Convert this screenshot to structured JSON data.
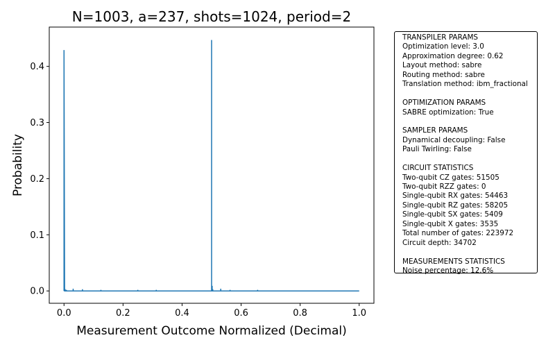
{
  "chart_data": {
    "type": "line",
    "title": "N=1003, a=237, shots=1024, period=2",
    "xlabel": "Measurement Outcome Normalized (Decimal)",
    "ylabel": "Probability",
    "xlim": [
      -0.05,
      1.05
    ],
    "ylim": [
      -0.022,
      0.47
    ],
    "xticks": [
      "0.0",
      "0.2",
      "0.4",
      "0.6",
      "0.8",
      "1.0"
    ],
    "yticks": [
      "0.0",
      "0.1",
      "0.2",
      "0.3",
      "0.4"
    ],
    "grid": false,
    "line_color": "#1f77b4",
    "series": [
      {
        "x": [
          0.0,
          0.002,
          0.004,
          0.008,
          0.031,
          0.0625,
          0.125,
          0.25,
          0.3125,
          0.5,
          0.502,
          0.504,
          0.531,
          0.5625,
          0.656,
          1.0
        ],
        "y": [
          0.429,
          0.005,
          0.003,
          0.002,
          0.004,
          0.003,
          0.002,
          0.002,
          0.002,
          0.447,
          0.009,
          0.003,
          0.004,
          0.002,
          0.002,
          0.0
        ]
      }
    ]
  },
  "info_panel": {
    "lines": [
      "TRANSPILER PARAMS",
      "Optimization level: 3.0",
      "Approximation degree: 0.62",
      "Layout method: sabre",
      "Routing method: sabre",
      "Translation method: ibm_fractional",
      "",
      "OPTIMIZATION PARAMS",
      "SABRE optimization: True",
      "",
      "SAMPLER PARAMS",
      "Dynamical decoupling: False",
      "Pauli Twirling: False",
      "",
      "CIRCUIT STATISTICS",
      "Two-qubit CZ gates: 51505",
      "Two-qubit RZZ gates: 0",
      "Single-qubit RX gates: 54463",
      "Single-qubit RZ gates: 58205",
      "Single-qubit SX gates: 5409",
      "Single-qubit X gates: 3535",
      "Total number of gates: 223972",
      "Circuit depth: 34702",
      "",
      "MEASUREMENTS STATISTICS",
      "Noise percentage: 12.6%"
    ]
  }
}
